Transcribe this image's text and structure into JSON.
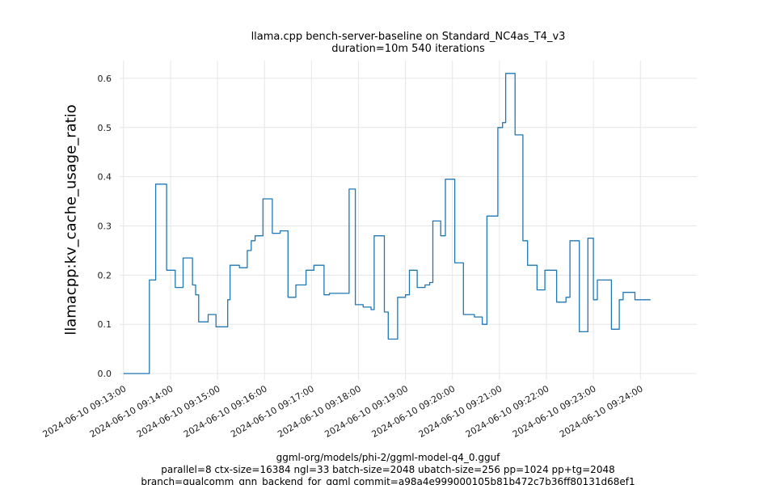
{
  "chart": {
    "title_line1": "llama.cpp bench-server-baseline on Standard_NC4as_T4_v3",
    "title_line2": "duration=10m 540 iterations",
    "ylabel": "llamacpp:kv_cache_usage_ratio",
    "captions": [
      "ggml-org/models/phi-2/ggml-model-q4_0.gguf",
      "parallel=8 ctx-size=16384 ngl=33 batch-size=2048 ubatch-size=256 pp=1024 pp+tg=2048",
      "branch=qualcomm_gnn_backend_for_ggml commit=a98a4e999000105b81b472c7b36ff80131d68ef1"
    ]
  },
  "chart_data": {
    "type": "line",
    "step": true,
    "title": "llama.cpp bench-server-baseline on Standard_NC4as_T4_v3 duration=10m 540 iterations",
    "xlabel": "",
    "ylabel": "llamacpp:kv_cache_usage_ratio",
    "ylim": [
      -0.013,
      0.636
    ],
    "grid": true,
    "legend": "none",
    "line_color": "#1f77b4",
    "grid_color": "#e6e6e6",
    "x_unit": "seconds since first x tick",
    "x_ticks": [
      "2024-06-10 09:13:00",
      "2024-06-10 09:14:00",
      "2024-06-10 09:15:00",
      "2024-06-10 09:16:00",
      "2024-06-10 09:17:00",
      "2024-06-10 09:18:00",
      "2024-06-10 09:19:00",
      "2024-06-10 09:20:00",
      "2024-06-10 09:21:00",
      "2024-06-10 09:22:00",
      "2024-06-10 09:23:00",
      "2024-06-10 09:24:00"
    ],
    "x_tick_seconds": [
      0,
      60,
      120,
      180,
      240,
      300,
      360,
      420,
      480,
      540,
      600,
      660
    ],
    "y_ticks": [
      0.0,
      0.1,
      0.2,
      0.3,
      0.4,
      0.5,
      0.6
    ],
    "series": [
      {
        "name": "llamacpp:kv_cache_usage_ratio",
        "end_t": 673,
        "points": [
          [
            0,
            0.0
          ],
          [
            33,
            0.19
          ],
          [
            41,
            0.385
          ],
          [
            55,
            0.21
          ],
          [
            66,
            0.175
          ],
          [
            76,
            0.235
          ],
          [
            88,
            0.18
          ],
          [
            92,
            0.16
          ],
          [
            96,
            0.105
          ],
          [
            108,
            0.12
          ],
          [
            118,
            0.095
          ],
          [
            133,
            0.15
          ],
          [
            136,
            0.22
          ],
          [
            148,
            0.215
          ],
          [
            158,
            0.25
          ],
          [
            163,
            0.27
          ],
          [
            168,
            0.28
          ],
          [
            178,
            0.355
          ],
          [
            190,
            0.285
          ],
          [
            200,
            0.29
          ],
          [
            210,
            0.155
          ],
          [
            220,
            0.18
          ],
          [
            233,
            0.21
          ],
          [
            243,
            0.22
          ],
          [
            256,
            0.16
          ],
          [
            263,
            0.163
          ],
          [
            288,
            0.375
          ],
          [
            296,
            0.14
          ],
          [
            306,
            0.135
          ],
          [
            316,
            0.13
          ],
          [
            320,
            0.28
          ],
          [
            333,
            0.125
          ],
          [
            338,
            0.07
          ],
          [
            350,
            0.155
          ],
          [
            360,
            0.16
          ],
          [
            365,
            0.21
          ],
          [
            375,
            0.175
          ],
          [
            385,
            0.18
          ],
          [
            391,
            0.185
          ],
          [
            395,
            0.31
          ],
          [
            405,
            0.28
          ],
          [
            411,
            0.395
          ],
          [
            423,
            0.225
          ],
          [
            434,
            0.12
          ],
          [
            448,
            0.115
          ],
          [
            458,
            0.1
          ],
          [
            464,
            0.32
          ],
          [
            478,
            0.5
          ],
          [
            484,
            0.51
          ],
          [
            488,
            0.61
          ],
          [
            500,
            0.485
          ],
          [
            510,
            0.27
          ],
          [
            516,
            0.22
          ],
          [
            528,
            0.17
          ],
          [
            538,
            0.21
          ],
          [
            553,
            0.145
          ],
          [
            565,
            0.155
          ],
          [
            570,
            0.27
          ],
          [
            582,
            0.085
          ],
          [
            593,
            0.275
          ],
          [
            600,
            0.15
          ],
          [
            605,
            0.19
          ],
          [
            623,
            0.09
          ],
          [
            633,
            0.15
          ],
          [
            638,
            0.165
          ],
          [
            653,
            0.15
          ]
        ]
      }
    ]
  }
}
